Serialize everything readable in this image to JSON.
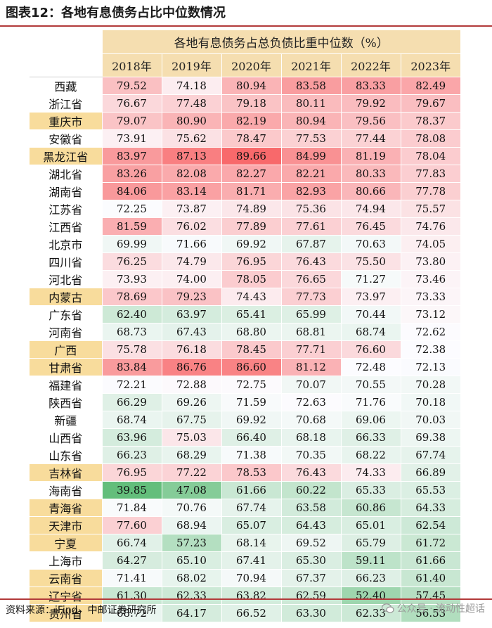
{
  "figure": {
    "title": "图表12：各地有息债务占比中位数情况",
    "table_title": "各地有息债务占总负债比重中位数（%）",
    "source": "资料来源：iFind，中邮证券研究所",
    "watermark": "公众号 · 流动性超话"
  },
  "colors": {
    "accent_line": "#b23a3a",
    "header_bg": "#f5deb0",
    "region_highlight": "#f8dc9c",
    "high_red": "#f8696b",
    "mid_white": "#fcfcff",
    "low_green": "#63be7b"
  },
  "chart_data": {
    "type": "heatmap",
    "title": "各地有息债务占总负债比重中位数（%）",
    "columns": [
      "2018年",
      "2019年",
      "2020年",
      "2021年",
      "2022年",
      "2023年"
    ],
    "rows": [
      {
        "region": "西藏",
        "highlight": false,
        "values": [
          "79.52",
          "74.18",
          "80.94",
          "83.58",
          "83.33",
          "82.49"
        ]
      },
      {
        "region": "浙江省",
        "highlight": false,
        "values": [
          "76.67",
          "77.48",
          "79.18",
          "80.11",
          "79.92",
          "79.67"
        ]
      },
      {
        "region": "重庆市",
        "highlight": true,
        "values": [
          "79.07",
          "80.90",
          "82.19",
          "80.94",
          "79.56",
          "78.37"
        ]
      },
      {
        "region": "安徽省",
        "highlight": false,
        "values": [
          "73.91",
          "75.62",
          "78.47",
          "77.53",
          "77.44",
          "78.08"
        ]
      },
      {
        "region": "黑龙江省",
        "highlight": true,
        "values": [
          "83.97",
          "87.13",
          "89.66",
          "84.99",
          "81.19",
          "78.04"
        ]
      },
      {
        "region": "湖北省",
        "highlight": false,
        "values": [
          "83.26",
          "82.08",
          "82.27",
          "82.21",
          "80.33",
          "77.83"
        ]
      },
      {
        "region": "湖南省",
        "highlight": false,
        "values": [
          "84.06",
          "83.14",
          "81.71",
          "82.93",
          "80.66",
          "77.78"
        ]
      },
      {
        "region": "江苏省",
        "highlight": false,
        "values": [
          "72.25",
          "73.87",
          "74.89",
          "75.36",
          "74.94",
          "75.57"
        ]
      },
      {
        "region": "江西省",
        "highlight": false,
        "values": [
          "81.59",
          "76.02",
          "77.89",
          "77.61",
          "76.45",
          "74.76"
        ]
      },
      {
        "region": "北京市",
        "highlight": false,
        "values": [
          "69.99",
          "71.66",
          "69.92",
          "67.87",
          "70.63",
          "74.05"
        ]
      },
      {
        "region": "四川省",
        "highlight": false,
        "values": [
          "76.25",
          "74.79",
          "76.95",
          "76.43",
          "75.50",
          "73.80"
        ]
      },
      {
        "region": "河北省",
        "highlight": false,
        "values": [
          "73.93",
          "74.00",
          "78.05",
          "76.65",
          "71.27",
          "73.46"
        ]
      },
      {
        "region": "内蒙古",
        "highlight": true,
        "values": [
          "78.69",
          "79.23",
          "74.43",
          "77.73",
          "73.97",
          "73.33"
        ]
      },
      {
        "region": "广东省",
        "highlight": false,
        "values": [
          "62.40",
          "63.97",
          "65.41",
          "65.99",
          "70.44",
          "73.12"
        ]
      },
      {
        "region": "河南省",
        "highlight": false,
        "values": [
          "68.73",
          "67.43",
          "68.80",
          "68.81",
          "68.74",
          "72.62"
        ]
      },
      {
        "region": "广西",
        "highlight": true,
        "values": [
          "75.78",
          "76.18",
          "78.45",
          "77.71",
          "76.60",
          "72.38"
        ]
      },
      {
        "region": "甘肃省",
        "highlight": true,
        "values": [
          "83.84",
          "86.76",
          "86.60",
          "81.12",
          "72.48",
          "72.13"
        ]
      },
      {
        "region": "福建省",
        "highlight": false,
        "values": [
          "72.21",
          "72.88",
          "72.75",
          "70.07",
          "70.55",
          "70.28"
        ]
      },
      {
        "region": "陕西省",
        "highlight": false,
        "values": [
          "66.29",
          "69.26",
          "71.59",
          "72.63",
          "71.76",
          "70.18"
        ]
      },
      {
        "region": "新疆",
        "highlight": false,
        "values": [
          "68.74",
          "67.75",
          "69.92",
          "70.68",
          "69.06",
          "70.03"
        ]
      },
      {
        "region": "山西省",
        "highlight": false,
        "values": [
          "63.96",
          "75.03",
          "66.40",
          "68.18",
          "66.33",
          "69.38"
        ]
      },
      {
        "region": "山东省",
        "highlight": false,
        "values": [
          "66.23",
          "68.29",
          "71.38",
          "70.35",
          "68.22",
          "67.74"
        ]
      },
      {
        "region": "吉林省",
        "highlight": true,
        "values": [
          "76.95",
          "77.22",
          "78.53",
          "76.43",
          "74.33",
          "66.89"
        ]
      },
      {
        "region": "海南省",
        "highlight": false,
        "values": [
          "39.85",
          "47.08",
          "61.66",
          "60.22",
          "65.33",
          "65.53"
        ]
      },
      {
        "region": "青海省",
        "highlight": true,
        "values": [
          "71.84",
          "70.76",
          "67.74",
          "63.58",
          "60.86",
          "64.33"
        ]
      },
      {
        "region": "天津市",
        "highlight": true,
        "values": [
          "77.60",
          "68.94",
          "65.07",
          "64.43",
          "65.01",
          "62.54"
        ]
      },
      {
        "region": "宁夏",
        "highlight": true,
        "values": [
          "66.74",
          "57.23",
          "68.14",
          "69.52",
          "65.79",
          "61.72"
        ]
      },
      {
        "region": "上海市",
        "highlight": false,
        "values": [
          "64.27",
          "65.10",
          "67.41",
          "65.30",
          "59.11",
          "61.66"
        ]
      },
      {
        "region": "云南省",
        "highlight": true,
        "values": [
          "71.41",
          "68.02",
          "70.94",
          "67.37",
          "66.23",
          "61.40"
        ]
      },
      {
        "region": "辽宁省",
        "highlight": true,
        "values": [
          "61.30",
          "62.33",
          "63.82",
          "62.59",
          "52.40",
          "57.45"
        ]
      },
      {
        "region": "贵州省",
        "highlight": true,
        "values": [
          "68.72",
          "64.17",
          "66.52",
          "63.30",
          "62.33",
          "56.53"
        ]
      }
    ]
  }
}
